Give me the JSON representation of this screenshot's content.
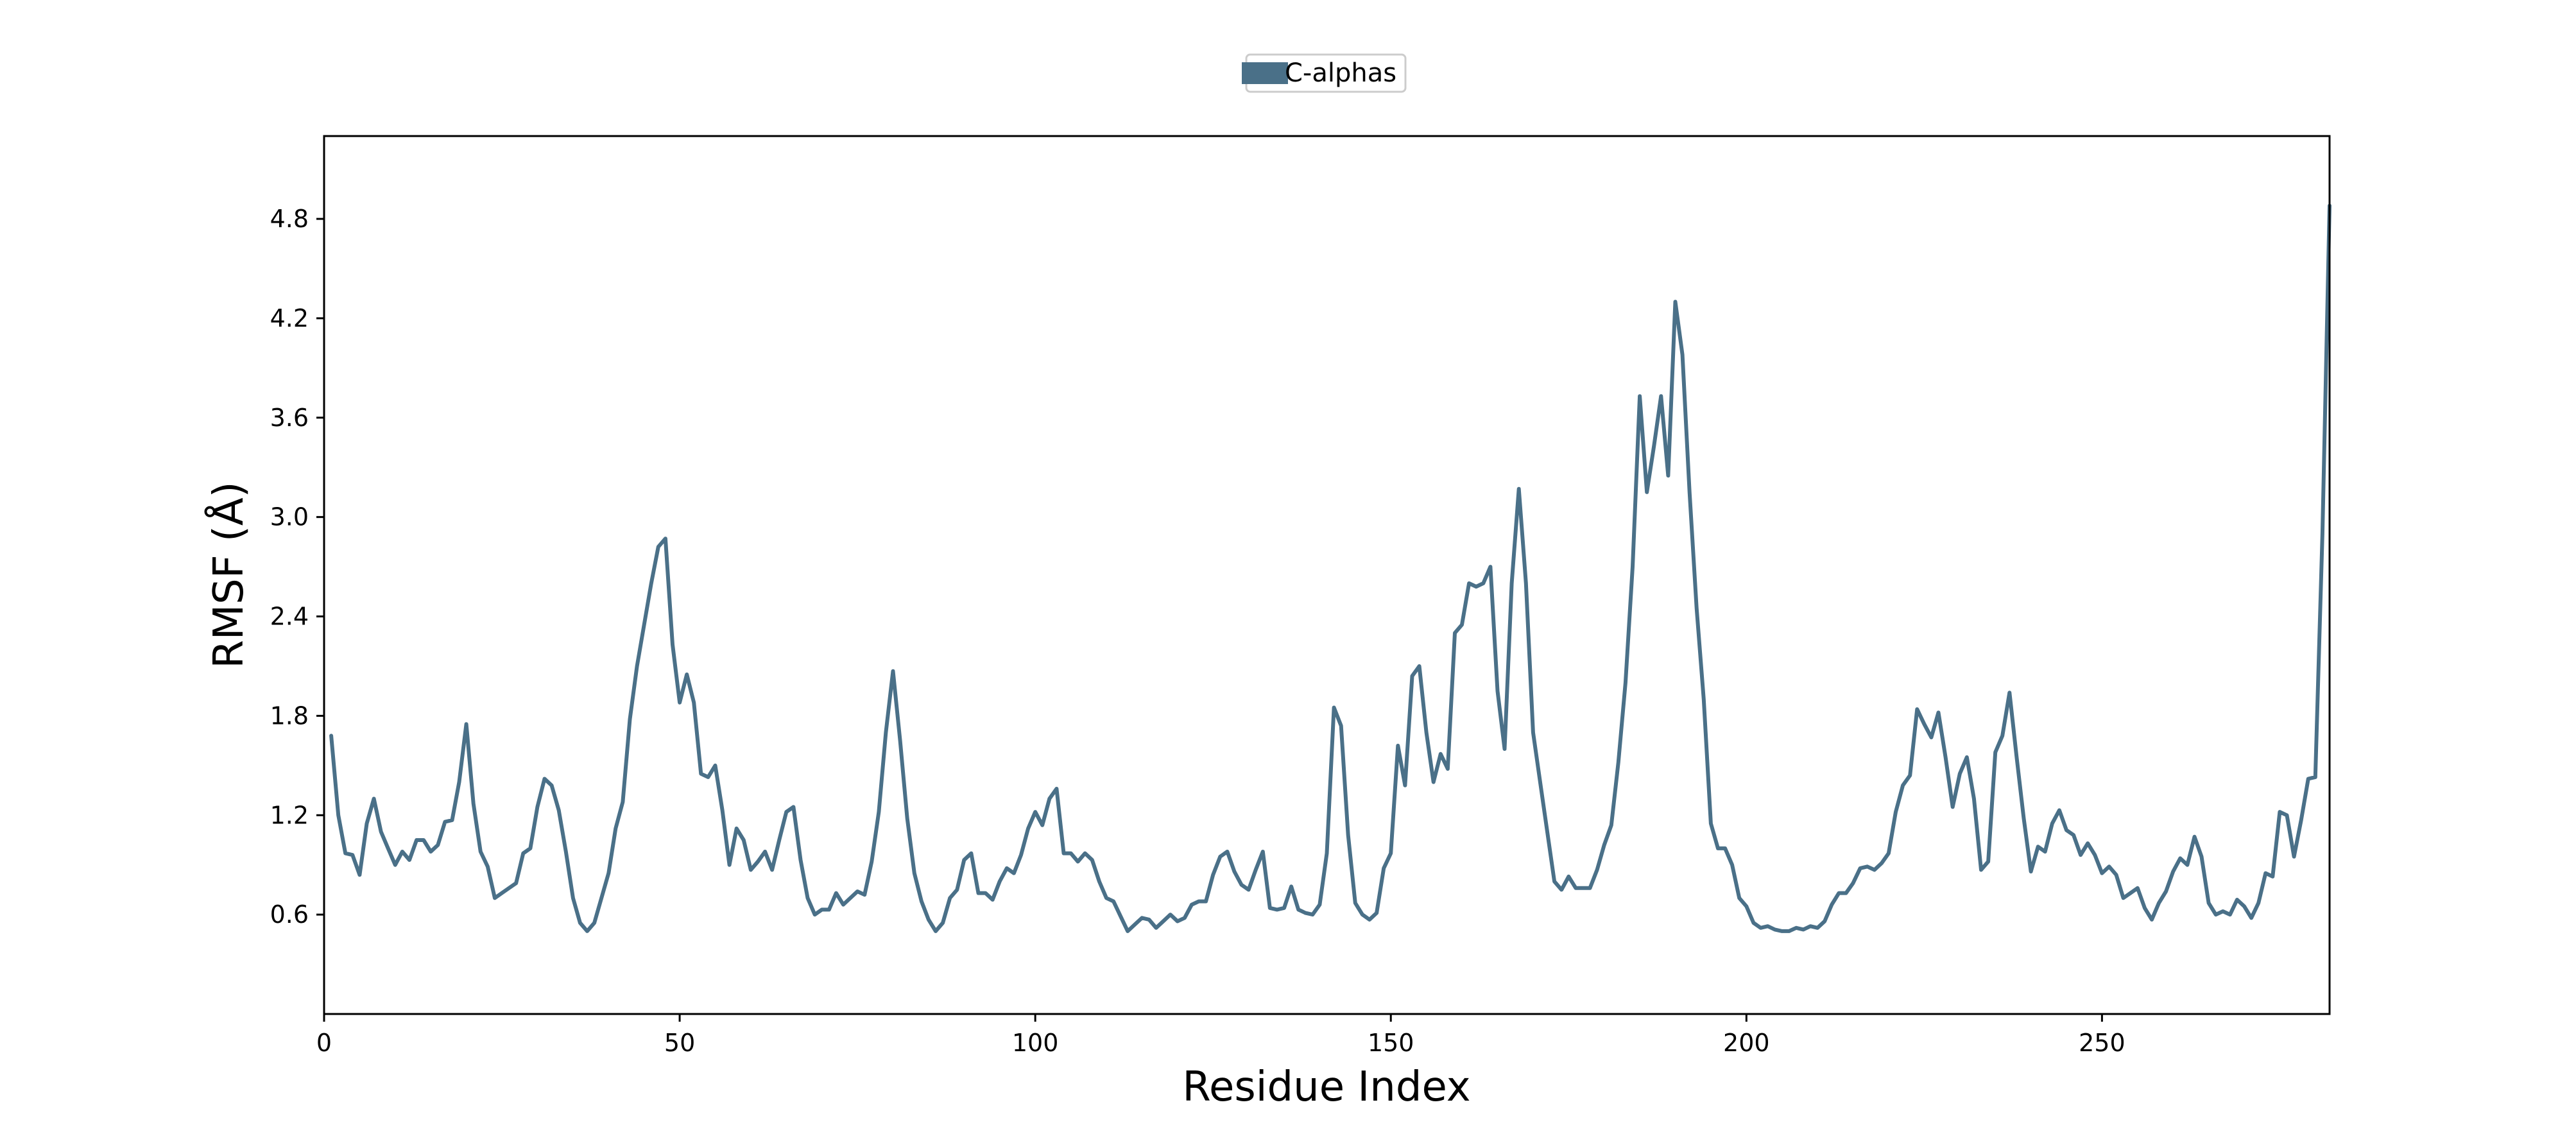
{
  "chart_data": {
    "type": "line",
    "title": "",
    "xlabel": "Residue Index",
    "ylabel": "RMSF (Å)",
    "xlim": [
      0,
      282
    ],
    "ylim": [
      0,
      5.3
    ],
    "x_ticks": [
      0,
      50,
      100,
      150,
      200,
      250
    ],
    "y_ticks": [
      0.6,
      1.2,
      1.8,
      2.4,
      3.0,
      3.6,
      4.2,
      4.8
    ],
    "grid": false,
    "legend_position": "top-center",
    "series": [
      {
        "name": "C-alphas",
        "color": "#4a7088",
        "x_start": 1,
        "x_step": 1,
        "values": [
          1.68,
          1.2,
          0.97,
          0.96,
          0.84,
          1.15,
          1.3,
          1.1,
          1.0,
          0.9,
          0.98,
          0.93,
          1.05,
          1.05,
          0.98,
          1.02,
          1.16,
          1.17,
          1.4,
          1.75,
          1.27,
          0.98,
          0.89,
          0.7,
          0.73,
          0.76,
          0.79,
          0.97,
          1.0,
          1.25,
          1.42,
          1.38,
          1.23,
          0.98,
          0.7,
          0.55,
          0.5,
          0.55,
          0.7,
          0.85,
          1.12,
          1.28,
          1.78,
          2.1,
          2.35,
          2.6,
          2.82,
          2.87,
          2.23,
          1.88,
          2.05,
          1.88,
          1.45,
          1.43,
          1.5,
          1.23,
          0.9,
          1.12,
          1.05,
          0.87,
          0.92,
          0.98,
          0.87,
          1.05,
          1.22,
          1.25,
          0.93,
          0.7,
          0.6,
          0.63,
          0.63,
          0.73,
          0.66,
          0.7,
          0.74,
          0.72,
          0.92,
          1.22,
          1.7,
          2.07,
          1.65,
          1.18,
          0.85,
          0.68,
          0.57,
          0.5,
          0.55,
          0.7,
          0.75,
          0.93,
          0.97,
          0.73,
          0.73,
          0.69,
          0.8,
          0.88,
          0.85,
          0.96,
          1.12,
          1.22,
          1.14,
          1.3,
          1.36,
          0.97,
          0.97,
          0.92,
          0.97,
          0.93,
          0.8,
          0.7,
          0.68,
          0.59,
          0.5,
          0.54,
          0.58,
          0.57,
          0.52,
          0.56,
          0.6,
          0.56,
          0.58,
          0.66,
          0.68,
          0.68,
          0.84,
          0.95,
          0.98,
          0.86,
          0.78,
          0.75,
          0.87,
          0.98,
          0.64,
          0.63,
          0.64,
          0.77,
          0.63,
          0.61,
          0.6,
          0.66,
          0.97,
          1.85,
          1.74,
          1.08,
          0.67,
          0.6,
          0.57,
          0.61,
          0.88,
          0.97,
          1.62,
          1.38,
          2.04,
          2.1,
          1.7,
          1.4,
          1.57,
          1.48,
          2.3,
          2.35,
          2.6,
          2.58,
          2.6,
          2.7,
          1.95,
          1.6,
          2.6,
          3.17,
          2.6,
          1.7,
          1.4,
          1.1,
          0.8,
          0.75,
          0.83,
          0.76,
          0.76,
          0.76,
          0.87,
          1.02,
          1.14,
          1.52,
          2.0,
          2.7,
          3.73,
          3.15,
          3.43,
          3.73,
          3.25,
          4.3,
          3.98,
          3.15,
          2.45,
          1.9,
          1.15,
          1.0,
          1.0,
          0.9,
          0.7,
          0.65,
          0.55,
          0.52,
          0.53,
          0.51,
          0.5,
          0.5,
          0.52,
          0.51,
          0.53,
          0.52,
          0.56,
          0.66,
          0.73,
          0.73,
          0.79,
          0.88,
          0.89,
          0.87,
          0.91,
          0.97,
          1.22,
          1.38,
          1.44,
          1.84,
          1.75,
          1.67,
          1.82,
          1.55,
          1.25,
          1.45,
          1.55,
          1.3,
          0.87,
          0.92,
          1.58,
          1.68,
          1.94,
          1.55,
          1.18,
          0.86,
          1.01,
          0.98,
          1.15,
          1.23,
          1.11,
          1.08,
          0.96,
          1.03,
          0.96,
          0.85,
          0.89,
          0.84,
          0.7,
          0.73,
          0.76,
          0.64,
          0.57,
          0.67,
          0.74,
          0.86,
          0.94,
          0.9,
          1.07,
          0.95,
          0.67,
          0.6,
          0.62,
          0.6,
          0.69,
          0.65,
          0.58,
          0.67,
          0.85,
          0.83,
          1.22,
          1.2,
          0.95,
          1.17,
          1.42,
          1.43,
          2.9,
          4.88
        ]
      }
    ]
  }
}
